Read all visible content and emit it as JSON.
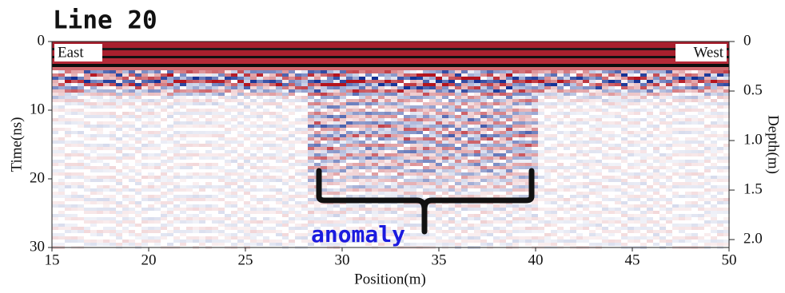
{
  "chart_data": {
    "type": "radargram",
    "title": "Line 20",
    "xlabel": "Position(m)",
    "ylabel": "Time(ns)",
    "y2label": "Depth(m)",
    "xlim": [
      15,
      50
    ],
    "xticks": [
      15,
      20,
      25,
      30,
      35,
      40,
      45,
      50
    ],
    "ylim": [
      0,
      30
    ],
    "yticks": [
      0,
      10,
      20,
      30
    ],
    "y2lim": [
      0,
      2.08
    ],
    "y2ticks": [
      0,
      0.5,
      {
        "value": 1,
        "label": "1.0"
      },
      1.5,
      {
        "value": 2,
        "label": "2.0"
      }
    ],
    "annotations": {
      "left": "East",
      "right": "West",
      "region": "anomaly"
    },
    "region_xlim": [
      29,
      40
    ]
  }
}
